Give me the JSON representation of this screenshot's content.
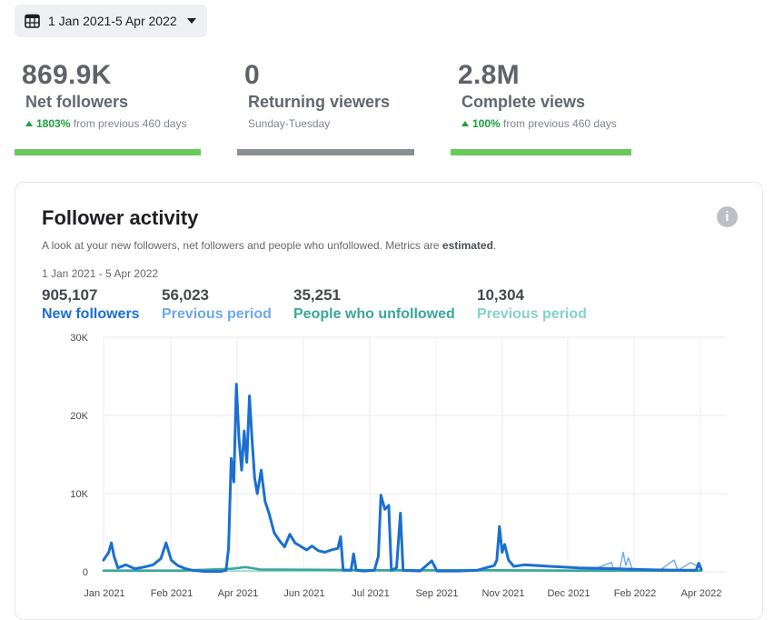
{
  "date_range_button": {
    "label": "1 Jan 2021-5 Apr 2022",
    "icon": "calendar-icon",
    "caret": "caret-down-icon"
  },
  "metrics": [
    {
      "value": "869.9K",
      "label": "Net followers",
      "change_pct": "1803%",
      "change_text": "from previous 460 days",
      "bar_color": "#6ac85c"
    },
    {
      "value": "0",
      "label": "Returning viewers",
      "subtitle": "Sunday-Tuesday",
      "bar_color": "#8a8d91"
    },
    {
      "value": "2.8M",
      "label": "Complete views",
      "change_pct": "100%",
      "change_text": "from previous 460 days",
      "bar_color": "#6ac85c"
    }
  ],
  "card": {
    "title": "Follower activity",
    "description_prefix": "A look at your new followers, net followers and people who unfollowed. Metrics are ",
    "description_bold": "estimated",
    "description_suffix": ".",
    "date_range": "1 Jan 2021 - 5 Apr 2022",
    "info_icon": "info-icon",
    "stats": [
      {
        "number": "905,107",
        "label": "New followers",
        "color": "#1b6fd1"
      },
      {
        "number": "56,023",
        "label": "Previous period",
        "color": "#6ea9e8"
      },
      {
        "number": "35,251",
        "label": "People who unfollowed",
        "color": "#3aa69a"
      },
      {
        "number": "10,304",
        "label": "Previous period",
        "color": "#86d2c6"
      }
    ]
  },
  "chart_data": {
    "type": "line",
    "x_tick_labels": [
      "Jan 2021",
      "Feb 2021",
      "Apr 2021",
      "Jun 2021",
      "Jul 2021",
      "Sep 2021",
      "Nov 2021",
      "Dec 2021",
      "Feb 2022",
      "Apr 2022"
    ],
    "y_tick_labels": [
      "30K",
      "20K",
      "10K",
      "0"
    ],
    "y_ticks": [
      30000,
      20000,
      10000,
      0
    ],
    "ylim": [
      0,
      30000
    ],
    "grid": true,
    "series": [
      {
        "name": "New followers",
        "color": "#1b6fd1",
        "points": [
          [
            "2021-01-01",
            1500
          ],
          [
            "2021-01-05",
            2500
          ],
          [
            "2021-01-07",
            3700
          ],
          [
            "2021-01-09",
            2000
          ],
          [
            "2021-01-12",
            500
          ],
          [
            "2021-01-18",
            900
          ],
          [
            "2021-01-25",
            400
          ],
          [
            "2021-02-01",
            600
          ],
          [
            "2021-02-08",
            900
          ],
          [
            "2021-02-14",
            1700
          ],
          [
            "2021-02-18",
            3700
          ],
          [
            "2021-02-22",
            1500
          ],
          [
            "2021-02-27",
            800
          ],
          [
            "2021-03-05",
            400
          ],
          [
            "2021-03-10",
            200
          ],
          [
            "2021-03-20",
            50
          ],
          [
            "2021-04-01",
            50
          ],
          [
            "2021-04-05",
            200
          ],
          [
            "2021-04-07",
            3000
          ],
          [
            "2021-04-09",
            14500
          ],
          [
            "2021-04-11",
            11500
          ],
          [
            "2021-04-13",
            24000
          ],
          [
            "2021-04-15",
            17000
          ],
          [
            "2021-04-17",
            13000
          ],
          [
            "2021-04-19",
            18000
          ],
          [
            "2021-04-21",
            14000
          ],
          [
            "2021-04-23",
            22500
          ],
          [
            "2021-04-25",
            17000
          ],
          [
            "2021-04-27",
            12000
          ],
          [
            "2021-04-29",
            10000
          ],
          [
            "2021-05-02",
            13000
          ],
          [
            "2021-05-05",
            9000
          ],
          [
            "2021-05-08",
            7500
          ],
          [
            "2021-05-12",
            5000
          ],
          [
            "2021-05-16",
            4000
          ],
          [
            "2021-05-20",
            3200
          ],
          [
            "2021-05-24",
            4800
          ],
          [
            "2021-05-28",
            3700
          ],
          [
            "2021-06-02",
            3200
          ],
          [
            "2021-06-06",
            2800
          ],
          [
            "2021-06-10",
            3300
          ],
          [
            "2021-06-15",
            2700
          ],
          [
            "2021-06-20",
            2500
          ],
          [
            "2021-06-25",
            2800
          ],
          [
            "2021-06-30",
            3000
          ],
          [
            "2021-07-02",
            4500
          ],
          [
            "2021-07-04",
            200
          ],
          [
            "2021-07-10",
            200
          ],
          [
            "2021-07-12",
            2300
          ],
          [
            "2021-07-14",
            200
          ],
          [
            "2021-07-20",
            100
          ],
          [
            "2021-07-28",
            200
          ],
          [
            "2021-07-31",
            2000
          ],
          [
            "2021-08-02",
            9800
          ],
          [
            "2021-08-05",
            8000
          ],
          [
            "2021-08-08",
            8500
          ],
          [
            "2021-08-10",
            200
          ],
          [
            "2021-08-14",
            500
          ],
          [
            "2021-08-17",
            7500
          ],
          [
            "2021-08-19",
            200
          ],
          [
            "2021-09-01",
            100
          ],
          [
            "2021-09-10",
            1400
          ],
          [
            "2021-09-14",
            100
          ],
          [
            "2021-10-01",
            100
          ],
          [
            "2021-10-15",
            200
          ],
          [
            "2021-10-28",
            800
          ],
          [
            "2021-10-30",
            1500
          ],
          [
            "2021-11-01",
            5800
          ],
          [
            "2021-11-03",
            2500
          ],
          [
            "2021-11-05",
            3500
          ],
          [
            "2021-11-08",
            1500
          ],
          [
            "2021-11-12",
            700
          ],
          [
            "2021-11-20",
            900
          ],
          [
            "2021-11-30",
            800
          ],
          [
            "2021-12-10",
            700
          ],
          [
            "2021-12-20",
            600
          ],
          [
            "2022-01-01",
            500
          ],
          [
            "2022-01-15",
            450
          ],
          [
            "2022-01-30",
            400
          ],
          [
            "2022-02-15",
            300
          ],
          [
            "2022-03-01",
            250
          ],
          [
            "2022-03-20",
            200
          ],
          [
            "2022-04-01",
            200
          ],
          [
            "2022-04-03",
            1100
          ],
          [
            "2022-04-05",
            300
          ]
        ]
      },
      {
        "name": "Previous period",
        "color": "#6ea9e8",
        "points": [
          [
            "2021-11-20",
            200
          ],
          [
            "2022-01-10",
            200
          ],
          [
            "2022-01-26",
            1200
          ],
          [
            "2022-01-28",
            100
          ],
          [
            "2022-02-01",
            100
          ],
          [
            "2022-02-04",
            2500
          ],
          [
            "2022-02-06",
            800
          ],
          [
            "2022-02-08",
            1800
          ],
          [
            "2022-02-11",
            300
          ],
          [
            "2022-02-20",
            200
          ],
          [
            "2022-03-05",
            300
          ],
          [
            "2022-03-15",
            1500
          ],
          [
            "2022-03-18",
            200
          ],
          [
            "2022-03-28",
            1200
          ],
          [
            "2022-04-01",
            800
          ],
          [
            "2022-04-05",
            400
          ]
        ]
      },
      {
        "name": "People who unfollowed",
        "color": "#3aa69a",
        "points": [
          [
            "2021-01-01",
            150
          ],
          [
            "2021-03-01",
            150
          ],
          [
            "2021-04-10",
            400
          ],
          [
            "2021-04-20",
            600
          ],
          [
            "2021-05-01",
            300
          ],
          [
            "2021-07-01",
            250
          ],
          [
            "2021-08-05",
            200
          ],
          [
            "2021-11-01",
            200
          ],
          [
            "2022-01-01",
            150
          ],
          [
            "2022-04-05",
            150
          ]
        ]
      },
      {
        "name": "Previous period",
        "color": "#86d2c6",
        "points": [
          [
            "2021-01-01",
            100
          ],
          [
            "2021-06-01",
            120
          ],
          [
            "2021-12-01",
            120
          ],
          [
            "2022-04-05",
            120
          ]
        ]
      }
    ]
  }
}
